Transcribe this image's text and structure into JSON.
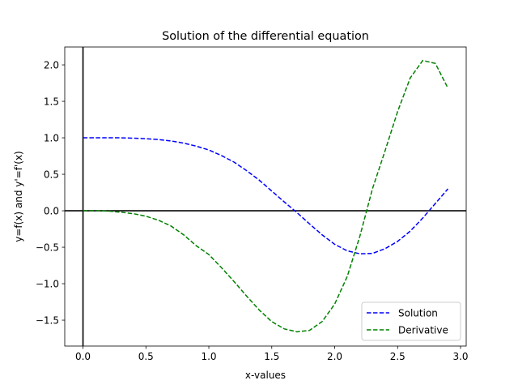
{
  "chart_data": {
    "type": "line",
    "title": "Solution of the differential equation",
    "xlabel": "x-values",
    "ylabel": "y=f(x) and y'=f'(x)",
    "xlim": [
      -0.145,
      3.045
    ],
    "ylim": [
      -1.855,
      2.245
    ],
    "xticks": [
      0.0,
      0.5,
      1.0,
      1.5,
      2.0,
      2.5,
      3.0
    ],
    "xtick_labels": [
      "0.0",
      "0.5",
      "1.0",
      "1.5",
      "2.0",
      "2.5",
      "3.0"
    ],
    "yticks": [
      -1.5,
      -1.0,
      -0.5,
      0.0,
      0.5,
      1.0,
      1.5,
      2.0
    ],
    "ytick_labels": [
      "−1.5",
      "−1.0",
      "−0.5",
      "0.0",
      "0.5",
      "1.0",
      "1.5",
      "2.0"
    ],
    "grid": false,
    "legend_position": "lower-right",
    "reference_lines": {
      "horizontal_y": 0,
      "vertical_x": 0,
      "color": "#000000"
    },
    "series": [
      {
        "name": "Solution",
        "color": "#0000ff",
        "linestyle": "dashed",
        "x": [
          0.0,
          0.1,
          0.2,
          0.3,
          0.4,
          0.5,
          0.6,
          0.7,
          0.8,
          0.9,
          1.0,
          1.1,
          1.2,
          1.3,
          1.4,
          1.5,
          1.6,
          1.7,
          1.8,
          1.9,
          2.0,
          2.1,
          2.2,
          2.3,
          2.4,
          2.5,
          2.6,
          2.7,
          2.8,
          2.9
        ],
        "values": [
          1.0,
          1.0,
          1.0,
          1.0,
          0.995,
          0.988,
          0.976,
          0.957,
          0.927,
          0.886,
          0.833,
          0.757,
          0.667,
          0.55,
          0.42,
          0.27,
          0.12,
          -0.025,
          -0.18,
          -0.33,
          -0.46,
          -0.55,
          -0.59,
          -0.585,
          -0.52,
          -0.42,
          -0.28,
          -0.1,
          0.1,
          0.3
        ]
      },
      {
        "name": "Derivative",
        "color": "#008000",
        "linestyle": "dashed",
        "x": [
          0.0,
          0.1,
          0.2,
          0.3,
          0.4,
          0.5,
          0.6,
          0.7,
          0.8,
          0.9,
          1.0,
          1.1,
          1.2,
          1.3,
          1.4,
          1.5,
          1.6,
          1.7,
          1.8,
          1.9,
          2.0,
          2.1,
          2.2,
          2.3,
          2.4,
          2.5,
          2.6,
          2.7,
          2.8,
          2.9
        ],
        "values": [
          0.0,
          0.0,
          -0.005,
          -0.02,
          -0.04,
          -0.075,
          -0.13,
          -0.21,
          -0.33,
          -0.48,
          -0.6,
          -0.78,
          -0.97,
          -1.17,
          -1.36,
          -1.52,
          -1.62,
          -1.66,
          -1.64,
          -1.52,
          -1.28,
          -0.9,
          -0.35,
          0.3,
          0.82,
          1.36,
          1.82,
          2.06,
          2.02,
          1.68
        ]
      }
    ]
  }
}
